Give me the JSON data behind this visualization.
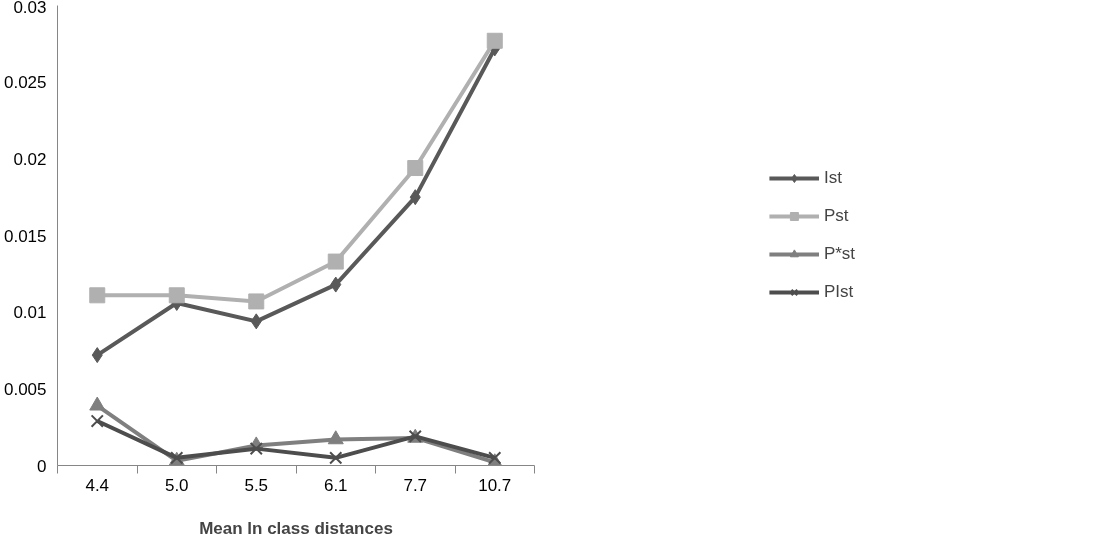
{
  "chart_data": {
    "type": "line",
    "xlabel": "Mean ln class distances",
    "categories": [
      "4.4",
      "5.0",
      "5.5",
      "6.1",
      "7.7",
      "10.7"
    ],
    "ylim": [
      0,
      0.03
    ],
    "yticks": [
      0,
      0.005,
      0.01,
      0.015,
      0.02,
      0.025,
      0.03
    ],
    "grid": false,
    "legend": "right",
    "series": [
      {
        "name": "Ist",
        "color": "#595959",
        "marker": "diamond",
        "values": [
          0.0072,
          0.0106,
          0.0094,
          0.0118,
          0.0175,
          0.0272
        ]
      },
      {
        "name": "Pst",
        "color": "#b0b0b0",
        "marker": "square",
        "values": [
          0.0111,
          0.0111,
          0.0107,
          0.0133,
          0.0194,
          0.0277
        ]
      },
      {
        "name": "P*st",
        "color": "#7f7f7f",
        "marker": "triangle",
        "values": [
          0.0039,
          0.0003,
          0.0013,
          0.0017,
          0.0018,
          0.0002
        ]
      },
      {
        "name": "PIst",
        "color": "#4d4d4d",
        "marker": "cross",
        "values": [
          0.0029,
          0.0005,
          0.0011,
          0.0005,
          0.0019,
          0.0005
        ]
      }
    ]
  }
}
